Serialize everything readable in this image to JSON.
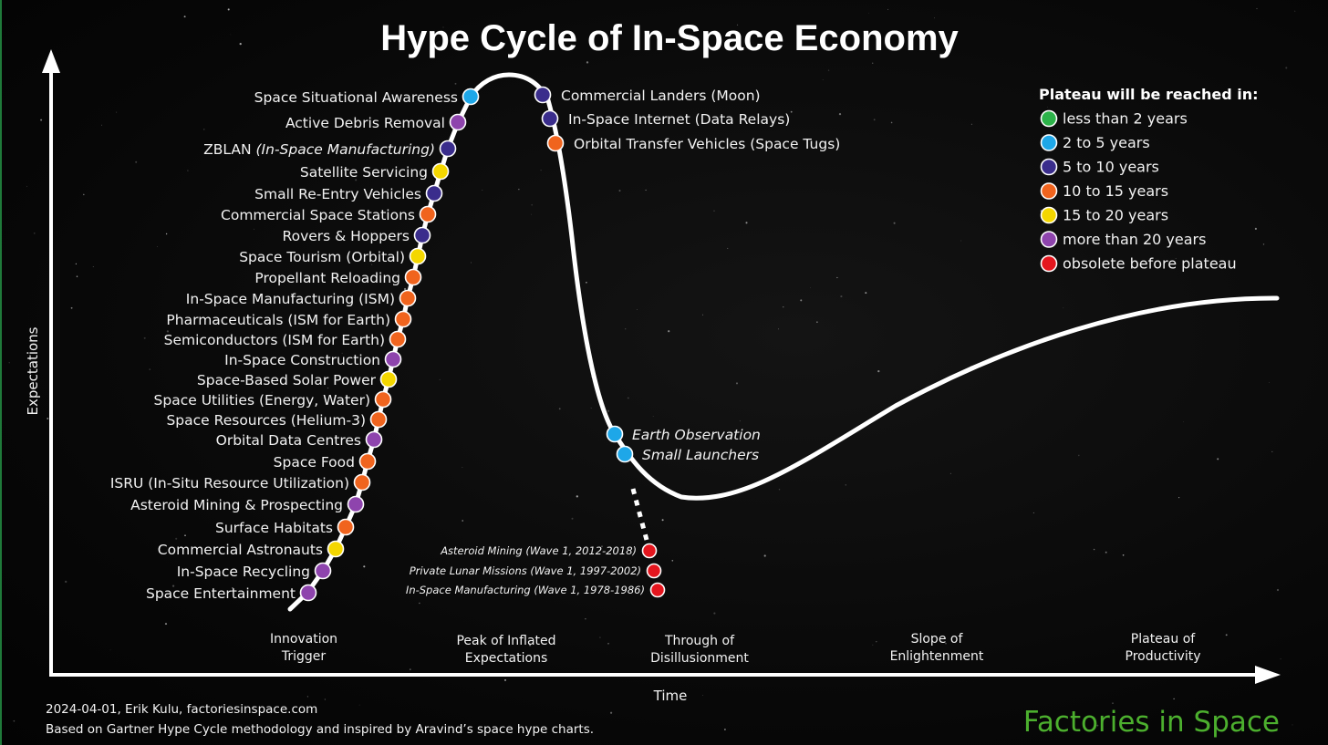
{
  "title": "Hype Cycle of In-Space Economy",
  "colors": {
    "background": "#050505",
    "curve": "#ffffff",
    "lt2": "#2db34a",
    "y2to5": "#1ea7e8",
    "y5to10": "#3a2d8c",
    "y10to15": "#f0641e",
    "y15to20": "#f4d700",
    "gt20": "#8e44ad",
    "obsolete": "#e4161e",
    "brand": "#4caf2e"
  },
  "legend": {
    "title": "Plateau will be reached in:",
    "items": [
      {
        "key": "lt2",
        "label": "less than 2 years"
      },
      {
        "key": "y2to5",
        "label": "2 to 5 years"
      },
      {
        "key": "y5to10",
        "label": "5 to 10 years"
      },
      {
        "key": "y10to15",
        "label": "10 to 15 years"
      },
      {
        "key": "y15to20",
        "label": "15 to 20 years"
      },
      {
        "key": "gt20",
        "label": "more than 20 years"
      },
      {
        "key": "obsolete",
        "label": "obsolete before plateau"
      }
    ]
  },
  "axes": {
    "x_label": "Time",
    "y_label": "Expectations"
  },
  "phases": [
    [
      "Innovation",
      "Trigger"
    ],
    [
      "Peak of Inflated",
      "Expectations"
    ],
    [
      "Through of",
      "Disillusionment"
    ],
    [
      "Slope of",
      "Enlightenment"
    ],
    [
      "Plateau of",
      "Productivity"
    ]
  ],
  "footer": {
    "line1": "2024-04-01, Erik Kulu, factoriesinspace.com",
    "line2": "Based on Gartner Hype Cycle methodology and inspired by Aravind’s space hype charts.",
    "brand": "Factories in Space"
  },
  "chart_data": {
    "type": "scatter",
    "title": "Hype Cycle of In-Space Economy",
    "xlabel": "Time",
    "ylabel": "Expectations",
    "curve_phases": [
      "Innovation Trigger",
      "Peak of Inflated Expectations",
      "Through of Disillusionment",
      "Slope of Enlightenment",
      "Plateau of Productivity"
    ],
    "rising": [
      {
        "label": "Space Situational Awareness",
        "category": "y2to5"
      },
      {
        "label": "Active Debris Removal",
        "category": "gt20"
      },
      {
        "label": "ZBLAN",
        "label_suffix": "(In-Space Manufacturing)",
        "category": "y5to10"
      },
      {
        "label": "Satellite Servicing",
        "category": "y15to20"
      },
      {
        "label": "Small Re-Entry Vehicles",
        "category": "y5to10"
      },
      {
        "label": "Commercial Space Stations",
        "category": "y10to15"
      },
      {
        "label": "Rovers & Hoppers",
        "category": "y5to10"
      },
      {
        "label": "Space Tourism (Orbital)",
        "category": "y15to20"
      },
      {
        "label": "Propellant Reloading",
        "category": "y10to15"
      },
      {
        "label": "In-Space Manufacturing (ISM)",
        "category": "y10to15"
      },
      {
        "label": "Pharmaceuticals (ISM for Earth)",
        "category": "y10to15"
      },
      {
        "label": "Semiconductors (ISM for Earth)",
        "category": "y10to15"
      },
      {
        "label": "In-Space Construction",
        "category": "gt20"
      },
      {
        "label": "Space-Based Solar Power",
        "category": "y15to20"
      },
      {
        "label": "Space Utilities (Energy, Water)",
        "category": "y10to15"
      },
      {
        "label": "Space Resources (Helium-3)",
        "category": "y10to15"
      },
      {
        "label": "Orbital Data Centres",
        "category": "gt20"
      },
      {
        "label": "Space Food",
        "category": "y10to15"
      },
      {
        "label": "ISRU (In-Situ Resource Utilization)",
        "category": "y10to15"
      },
      {
        "label": "Asteroid Mining & Prospecting",
        "category": "gt20"
      },
      {
        "label": "Surface Habitats",
        "category": "y10to15"
      },
      {
        "label": "Commercial Astronauts",
        "category": "y15to20"
      },
      {
        "label": "In-Space Recycling",
        "category": "gt20"
      },
      {
        "label": "Space Entertainment",
        "category": "gt20"
      }
    ],
    "falling": [
      {
        "label": "Commercial Landers (Moon)",
        "category": "y5to10"
      },
      {
        "label": "In-Space Internet (Data Relays)",
        "category": "y5to10"
      },
      {
        "label": "Orbital Transfer Vehicles (Space Tugs)",
        "category": "y10to15"
      }
    ],
    "trough": [
      {
        "label": "Earth Observation",
        "category": "y2to5"
      },
      {
        "label": "Small Launchers",
        "category": "y2to5"
      }
    ],
    "obsolete": [
      {
        "label": "Asteroid Mining (Wave 1, 2012-2018)",
        "category": "obsolete"
      },
      {
        "label": "Private Lunar Missions (Wave 1, 1997-2002)",
        "category": "obsolete"
      },
      {
        "label": "In-Space Manufacturing (Wave 1, 1978-1986)",
        "category": "obsolete"
      }
    ]
  }
}
